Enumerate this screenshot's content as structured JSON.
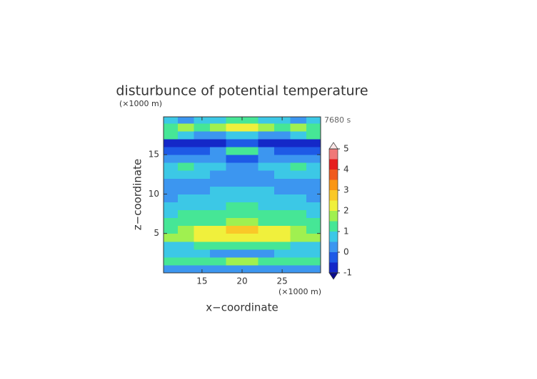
{
  "chart_data": {
    "type": "contour",
    "title": "disturbunce of potential temperature",
    "x_unit": "(×1000 m)",
    "y_unit": "(×1000 m)",
    "time_label": "7680 s",
    "xlabel": "x−coordinate",
    "ylabel": "z−coordinate",
    "xlim": [
      10.2,
      29.8
    ],
    "ylim": [
      0,
      19.8
    ],
    "xticks": [
      15,
      20,
      25
    ],
    "yticks": [
      5,
      10,
      15
    ],
    "x": [
      11,
      13,
      15,
      17,
      19,
      21,
      23,
      25,
      27,
      29
    ],
    "y": [
      0.5,
      1.5,
      2.5,
      3.5,
      4.5,
      5.5,
      6.5,
      7.5,
      8.5,
      9.5,
      10.5,
      11.5,
      12.5,
      13.5,
      14.5,
      15.5,
      16.5,
      17.5,
      18.5,
      19.5
    ],
    "values": [
      [
        0.3,
        0.3,
        0.3,
        0.4,
        0.4,
        0.4,
        0.4,
        0.3,
        0.3,
        0.3
      ],
      [
        1.2,
        1.3,
        1.3,
        1.4,
        1.6,
        1.6,
        1.4,
        1.3,
        1.3,
        1.2
      ],
      [
        0.6,
        0.7,
        0.6,
        0.4,
        0.2,
        0.2,
        0.4,
        0.6,
        0.7,
        0.6
      ],
      [
        0.8,
        0.9,
        1.1,
        1.2,
        1.3,
        1.3,
        1.2,
        1.1,
        0.9,
        0.8
      ],
      [
        1.6,
        1.8,
        2.0,
        2.2,
        2.3,
        2.3,
        2.2,
        2.0,
        1.8,
        1.6
      ],
      [
        1.4,
        1.7,
        2.1,
        2.3,
        2.6,
        2.6,
        2.3,
        2.1,
        1.7,
        1.4
      ],
      [
        1.1,
        1.2,
        1.3,
        1.4,
        1.5,
        1.5,
        1.4,
        1.3,
        1.2,
        1.1
      ],
      [
        0.9,
        1.1,
        1.2,
        1.1,
        1.2,
        1.2,
        1.1,
        1.2,
        1.1,
        0.9
      ],
      [
        0.6,
        0.7,
        0.8,
        0.9,
        1.1,
        1.1,
        0.9,
        0.8,
        0.7,
        0.6
      ],
      [
        0.4,
        0.5,
        0.6,
        0.7,
        0.8,
        0.8,
        0.7,
        0.6,
        0.5,
        0.4
      ],
      [
        0.3,
        0.3,
        0.4,
        0.5,
        0.6,
        0.6,
        0.5,
        0.4,
        0.3,
        0.3
      ],
      [
        0.4,
        0.4,
        0.3,
        0.3,
        0.4,
        0.4,
        0.3,
        0.3,
        0.4,
        0.4
      ],
      [
        0.6,
        0.7,
        0.5,
        0.3,
        0.3,
        0.3,
        0.3,
        0.5,
        0.7,
        0.6
      ],
      [
        0.8,
        1.1,
        0.9,
        0.5,
        0.2,
        0.2,
        0.5,
        0.9,
        1.1,
        0.8
      ],
      [
        0.4,
        0.4,
        0.3,
        0.2,
        -0.3,
        -0.3,
        0.2,
        0.3,
        0.4,
        0.4
      ],
      [
        -0.3,
        -0.4,
        -0.3,
        0.0,
        1.1,
        1.1,
        0.0,
        -0.3,
        -0.4,
        -0.3
      ],
      [
        -0.6,
        -0.7,
        -0.7,
        -0.6,
        -0.4,
        -0.4,
        -0.6,
        -0.7,
        -0.7,
        -0.6
      ],
      [
        1.0,
        0.7,
        0.3,
        0.4,
        0.6,
        0.6,
        0.4,
        0.3,
        0.7,
        1.0
      ],
      [
        1.3,
        1.6,
        1.3,
        1.6,
        2.1,
        2.1,
        1.6,
        1.3,
        1.6,
        1.3
      ],
      [
        0.6,
        0.4,
        0.7,
        0.9,
        1.2,
        1.2,
        0.9,
        0.7,
        0.4,
        0.6
      ]
    ],
    "levels": [
      -1,
      -0.5,
      0,
      0.5,
      1,
      1.5,
      2,
      2.5,
      3,
      3.5,
      4,
      4.5,
      5
    ],
    "colors": [
      "#1428c8",
      "#1e5ae6",
      "#3c96f0",
      "#3cc8e6",
      "#46e696",
      "#a0f050",
      "#f0f03c",
      "#fac828",
      "#fa9614",
      "#f05a1e",
      "#e61e1e",
      "#f07878",
      "#f5b4b4"
    ],
    "extend_colors": [
      "#0a0a8c",
      "#fae6e6"
    ],
    "colorbar_ticks": [
      -1,
      0,
      1,
      2,
      3,
      4,
      5
    ]
  }
}
